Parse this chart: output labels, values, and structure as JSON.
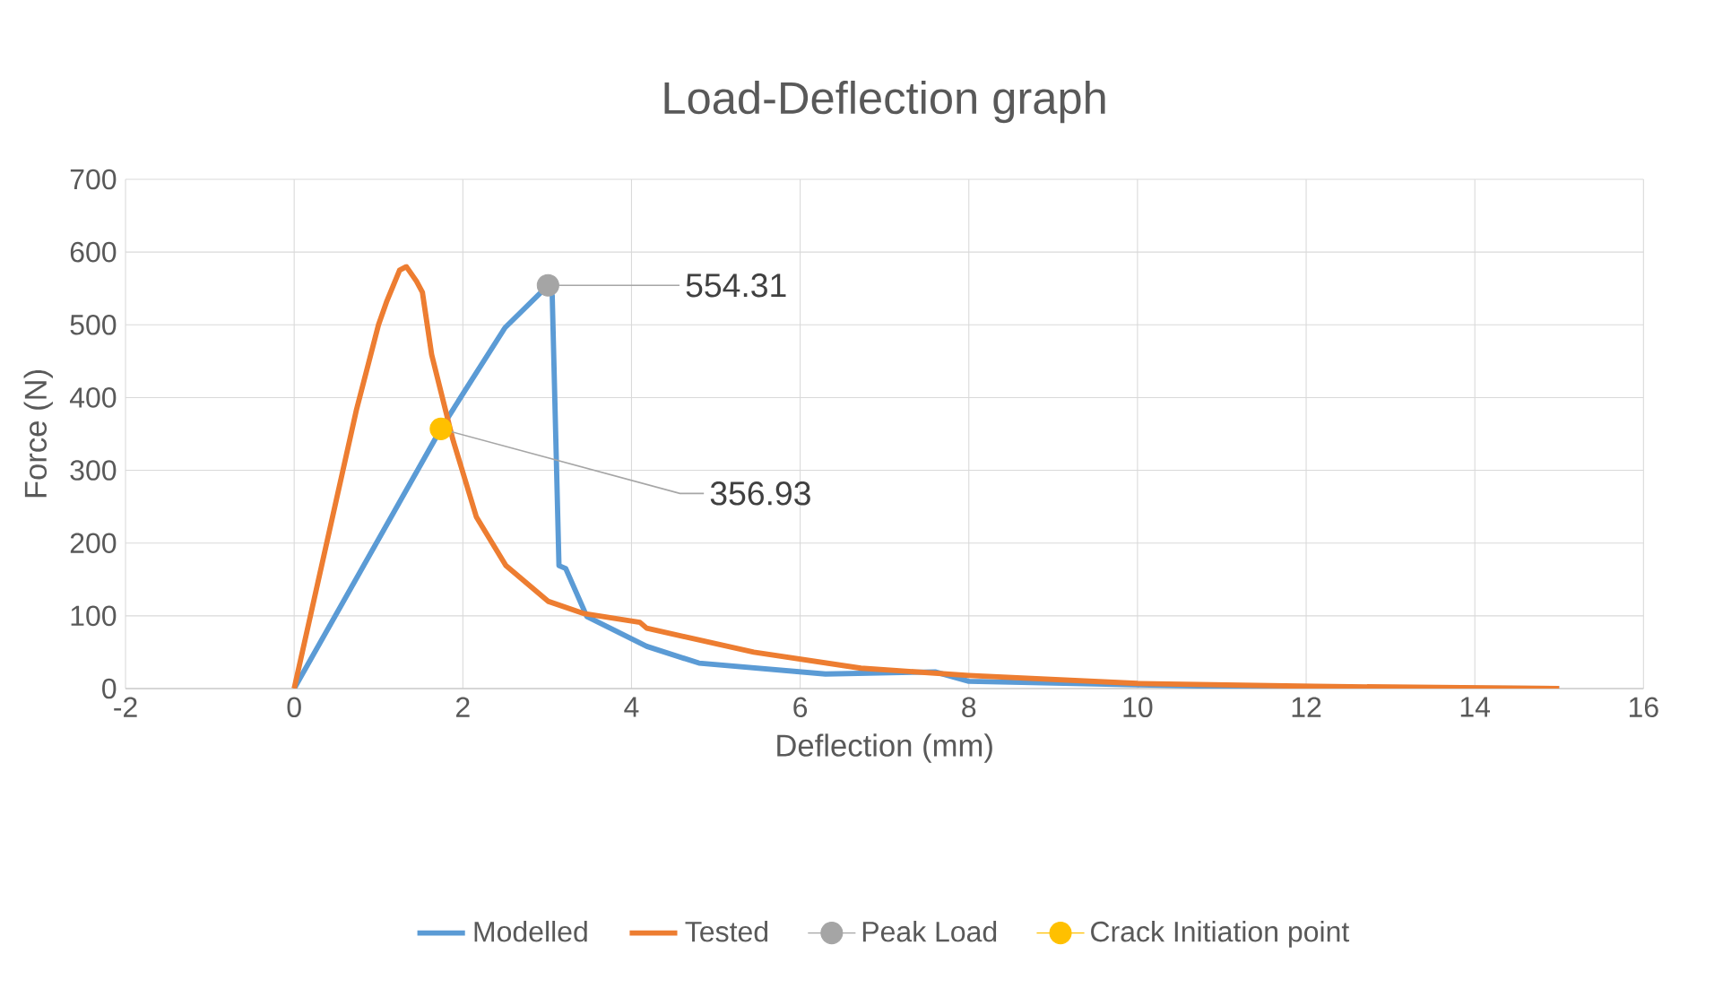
{
  "chart_data": {
    "type": "line",
    "title": "Load-Deflection graph",
    "xlabel": "Deflection (mm)",
    "ylabel": "Force (N)",
    "xlim": [
      -2,
      16
    ],
    "xticks": [
      -2,
      0,
      2,
      4,
      6,
      8,
      10,
      12,
      14,
      16
    ],
    "ylim": [
      0,
      700
    ],
    "yticks": [
      0,
      100,
      200,
      300,
      400,
      500,
      600,
      700
    ],
    "grid": true,
    "legend": "bottom",
    "line_style": "solid",
    "series": [
      {
        "name": "Modelled",
        "color": "#5b9bd5",
        "x": [
          0,
          1.74,
          2.0,
          2.5,
          3.01,
          3.06,
          3.14,
          3.22,
          3.47,
          4.18,
          4.8,
          6.3,
          7.6,
          8.0,
          10.0,
          12.0,
          15.0
        ],
        "values": [
          0,
          357,
          405,
          496,
          554,
          540,
          169,
          165,
          99,
          58,
          35,
          20,
          23,
          10,
          5,
          1,
          0
        ]
      },
      {
        "name": "Tested",
        "color": "#ed7d31",
        "x": [
          0,
          0.74,
          1.0,
          1.1,
          1.25,
          1.33,
          1.45,
          1.52,
          1.63,
          1.88,
          2.16,
          2.51,
          3.01,
          3.44,
          4.1,
          4.18,
          5.45,
          6.72,
          8.0,
          10.0,
          12.1,
          15.0
        ],
        "values": [
          0,
          384,
          500,
          533,
          575,
          580,
          560,
          545,
          459,
          343,
          236,
          169,
          120,
          103,
          91,
          83,
          50,
          28,
          18,
          7,
          3,
          0
        ]
      },
      {
        "name": "Peak Load",
        "type": "scatter",
        "color": "#a5a5a5",
        "x": [
          3.01
        ],
        "values": [
          554.31
        ],
        "value_labels": [
          "554.31"
        ]
      },
      {
        "name": "Crack Initiation point",
        "type": "scatter",
        "color": "#ffc000",
        "x": [
          1.74
        ],
        "values": [
          356.93
        ],
        "value_labels": [
          "356.93"
        ]
      }
    ]
  }
}
